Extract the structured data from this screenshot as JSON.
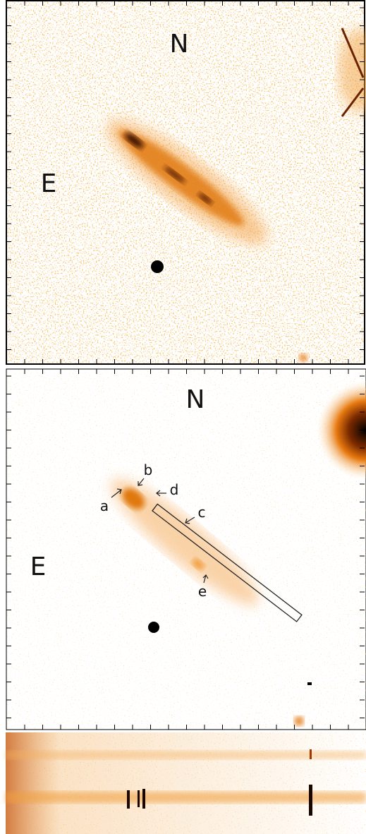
{
  "panels": [
    {
      "labels": {
        "north": "N",
        "east": "E"
      }
    },
    {
      "labels": {
        "north": "N",
        "east": "E"
      },
      "features": [
        {
          "label": "a"
        },
        {
          "label": "b"
        },
        {
          "label": "c"
        },
        {
          "label": "d"
        },
        {
          "label": "e"
        }
      ]
    }
  ]
}
